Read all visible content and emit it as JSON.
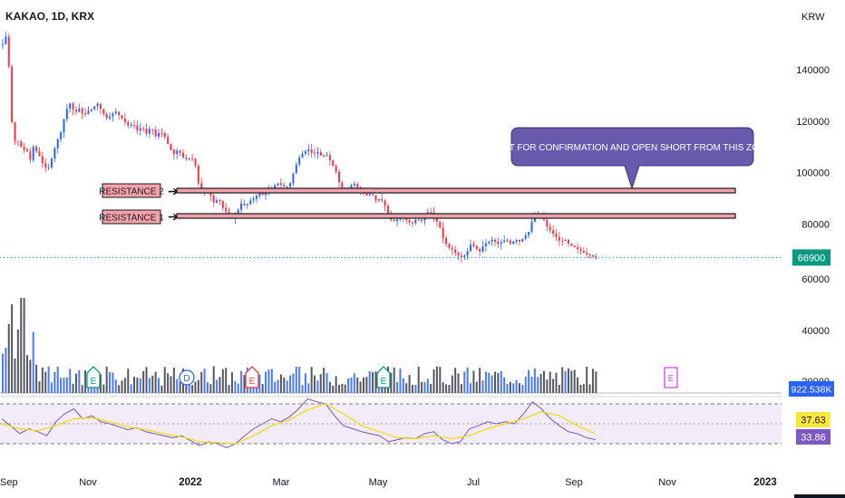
{
  "header": {
    "symbol": "KAKAO, 1D, KRX"
  },
  "chart_data": {
    "type": "candlestick",
    "currency_label": "KRW",
    "price_axis": {
      "ticks": [
        "140000",
        "120000",
        "100000",
        "80000",
        "60000",
        "40000",
        "20000"
      ],
      "tick_values": [
        140000,
        120000,
        100000,
        80000,
        60000,
        40000,
        20000
      ]
    },
    "time_axis": {
      "labels": [
        "Sep",
        "Nov",
        "2022",
        "Mar",
        "May",
        "Jul",
        "Sep",
        "Nov",
        "2023"
      ]
    },
    "last_price": {
      "label": "66900",
      "value": 66900
    },
    "volume": {
      "label": "922.538K"
    },
    "rsi": {
      "value_a": "37.63",
      "value_b": "33.86",
      "upper_band": 70,
      "lower_band": 30
    },
    "resistance_levels": [
      {
        "label": "RESISTANCE 2",
        "price": 93500
      },
      {
        "label": "RESISTANCE 1",
        "price": 84200
      }
    ],
    "callout": "WAIT FOR CONFIRMATION AND OPEN SHORT FROM THIS ZONE",
    "earnings_markers": [
      "E",
      "D",
      "E",
      "E",
      "E"
    ],
    "price_path": [
      [
        0,
        150000
      ],
      [
        3,
        153000
      ],
      [
        6,
        152000
      ],
      [
        8,
        125000
      ],
      [
        12,
        115000
      ],
      [
        15,
        110000
      ],
      [
        18,
        113000
      ],
      [
        22,
        108000
      ],
      [
        26,
        110000
      ],
      [
        30,
        104000
      ],
      [
        34,
        110000
      ],
      [
        40,
        107000
      ],
      [
        45,
        103000
      ],
      [
        50,
        101000
      ],
      [
        55,
        106000
      ],
      [
        60,
        112000
      ],
      [
        65,
        116000
      ],
      [
        70,
        124000
      ],
      [
        75,
        127000
      ],
      [
        80,
        123000
      ],
      [
        85,
        125000
      ],
      [
        90,
        122000
      ],
      [
        95,
        124000
      ],
      [
        100,
        125000
      ],
      [
        105,
        127000
      ],
      [
        110,
        124000
      ],
      [
        115,
        121000
      ],
      [
        120,
        122000
      ],
      [
        125,
        124000
      ],
      [
        130,
        122000
      ],
      [
        135,
        120000
      ],
      [
        140,
        118000
      ],
      [
        145,
        119000
      ],
      [
        150,
        116000
      ],
      [
        155,
        118000
      ],
      [
        160,
        115000
      ],
      [
        165,
        118000
      ],
      [
        170,
        114000
      ],
      [
        175,
        116000
      ],
      [
        180,
        114000
      ],
      [
        185,
        110000
      ],
      [
        190,
        107000
      ],
      [
        195,
        109000
      ],
      [
        200,
        106000
      ],
      [
        205,
        105000
      ],
      [
        210,
        106000
      ],
      [
        214,
        103000
      ],
      [
        218,
        95000
      ],
      [
        222,
        91000
      ],
      [
        226,
        94000
      ],
      [
        230,
        92000
      ],
      [
        235,
        88000
      ],
      [
        240,
        90000
      ],
      [
        245,
        86000
      ],
      [
        250,
        84000
      ],
      [
        255,
        82000
      ],
      [
        260,
        84000
      ],
      [
        265,
        88000
      ],
      [
        270,
        87000
      ],
      [
        275,
        89000
      ],
      [
        280,
        90000
      ],
      [
        285,
        92000
      ],
      [
        290,
        91000
      ],
      [
        295,
        93000
      ],
      [
        300,
        94000
      ],
      [
        305,
        96000
      ],
      [
        310,
        95000
      ],
      [
        315,
        94000
      ],
      [
        320,
        96000
      ],
      [
        325,
        102000
      ],
      [
        330,
        106000
      ],
      [
        335,
        108000
      ],
      [
        340,
        109000
      ],
      [
        345,
        107000
      ],
      [
        350,
        108000
      ],
      [
        355,
        106000
      ],
      [
        360,
        107000
      ],
      [
        365,
        104000
      ],
      [
        370,
        101000
      ],
      [
        375,
        95000
      ],
      [
        380,
        93000
      ],
      [
        385,
        94000
      ],
      [
        390,
        96000
      ],
      [
        395,
        94000
      ],
      [
        400,
        92000
      ],
      [
        405,
        91000
      ],
      [
        410,
        92000
      ],
      [
        415,
        89000
      ],
      [
        420,
        90000
      ],
      [
        425,
        87000
      ],
      [
        430,
        82000
      ],
      [
        435,
        81000
      ],
      [
        440,
        82000
      ],
      [
        445,
        83000
      ],
      [
        450,
        81000
      ],
      [
        455,
        80000
      ],
      [
        460,
        82000
      ],
      [
        465,
        81000
      ],
      [
        470,
        84000
      ],
      [
        475,
        85000
      ],
      [
        480,
        82000
      ],
      [
        485,
        80000
      ],
      [
        490,
        74000
      ],
      [
        495,
        71000
      ],
      [
        500,
        70000
      ],
      [
        505,
        68000
      ],
      [
        510,
        67000
      ],
      [
        515,
        68000
      ],
      [
        520,
        72000
      ],
      [
        525,
        71000
      ],
      [
        530,
        69000
      ],
      [
        535,
        72000
      ],
      [
        540,
        73000
      ],
      [
        545,
        74000
      ],
      [
        550,
        72000
      ],
      [
        555,
        73000
      ],
      [
        560,
        74000
      ],
      [
        565,
        72000
      ],
      [
        570,
        74000
      ],
      [
        575,
        73000
      ],
      [
        580,
        75000
      ],
      [
        585,
        77000
      ],
      [
        590,
        83000
      ],
      [
        595,
        84000
      ],
      [
        600,
        83000
      ],
      [
        605,
        79000
      ],
      [
        610,
        77000
      ],
      [
        615,
        75000
      ],
      [
        620,
        73000
      ],
      [
        625,
        74000
      ],
      [
        630,
        72000
      ],
      [
        635,
        71000
      ],
      [
        640,
        70000
      ],
      [
        645,
        69000
      ],
      [
        650,
        68000
      ],
      [
        655,
        67500
      ],
      [
        660,
        66900
      ]
    ],
    "rsi_path": [
      [
        0,
        55
      ],
      [
        10,
        48
      ],
      [
        20,
        40
      ],
      [
        30,
        45
      ],
      [
        40,
        42
      ],
      [
        50,
        38
      ],
      [
        60,
        52
      ],
      [
        70,
        60
      ],
      [
        80,
        65
      ],
      [
        90,
        55
      ],
      [
        100,
        58
      ],
      [
        110,
        52
      ],
      [
        120,
        50
      ],
      [
        130,
        47
      ],
      [
        140,
        44
      ],
      [
        150,
        46
      ],
      [
        160,
        42
      ],
      [
        170,
        40
      ],
      [
        180,
        38
      ],
      [
        190,
        36
      ],
      [
        200,
        38
      ],
      [
        210,
        33
      ],
      [
        220,
        28
      ],
      [
        230,
        32
      ],
      [
        240,
        30
      ],
      [
        250,
        26
      ],
      [
        260,
        30
      ],
      [
        270,
        38
      ],
      [
        280,
        45
      ],
      [
        290,
        50
      ],
      [
        300,
        55
      ],
      [
        310,
        52
      ],
      [
        320,
        57
      ],
      [
        330,
        65
      ],
      [
        340,
        75
      ],
      [
        350,
        72
      ],
      [
        360,
        70
      ],
      [
        370,
        58
      ],
      [
        380,
        48
      ],
      [
        390,
        45
      ],
      [
        400,
        42
      ],
      [
        410,
        40
      ],
      [
        420,
        38
      ],
      [
        430,
        32
      ],
      [
        440,
        34
      ],
      [
        450,
        36
      ],
      [
        460,
        35
      ],
      [
        470,
        40
      ],
      [
        480,
        42
      ],
      [
        490,
        34
      ],
      [
        500,
        30
      ],
      [
        510,
        32
      ],
      [
        520,
        45
      ],
      [
        530,
        48
      ],
      [
        540,
        52
      ],
      [
        550,
        50
      ],
      [
        560,
        52
      ],
      [
        570,
        50
      ],
      [
        580,
        60
      ],
      [
        590,
        72
      ],
      [
        600,
        65
      ],
      [
        610,
        55
      ],
      [
        620,
        48
      ],
      [
        630,
        42
      ],
      [
        640,
        40
      ],
      [
        650,
        36
      ],
      [
        660,
        34
      ]
    ],
    "rsi_ma_path": [
      [
        0,
        50
      ],
      [
        20,
        45
      ],
      [
        40,
        43
      ],
      [
        60,
        48
      ],
      [
        80,
        55
      ],
      [
        100,
        56
      ],
      [
        120,
        52
      ],
      [
        140,
        47
      ],
      [
        160,
        44
      ],
      [
        180,
        40
      ],
      [
        200,
        37
      ],
      [
        220,
        32
      ],
      [
        240,
        31
      ],
      [
        260,
        30
      ],
      [
        280,
        38
      ],
      [
        300,
        48
      ],
      [
        320,
        54
      ],
      [
        340,
        64
      ],
      [
        360,
        70
      ],
      [
        380,
        60
      ],
      [
        400,
        48
      ],
      [
        420,
        42
      ],
      [
        440,
        36
      ],
      [
        460,
        35
      ],
      [
        480,
        38
      ],
      [
        500,
        35
      ],
      [
        520,
        38
      ],
      [
        540,
        45
      ],
      [
        560,
        50
      ],
      [
        580,
        55
      ],
      [
        600,
        62
      ],
      [
        620,
        58
      ],
      [
        640,
        48
      ],
      [
        660,
        40
      ]
    ],
    "volume_bars_seed": 17
  }
}
